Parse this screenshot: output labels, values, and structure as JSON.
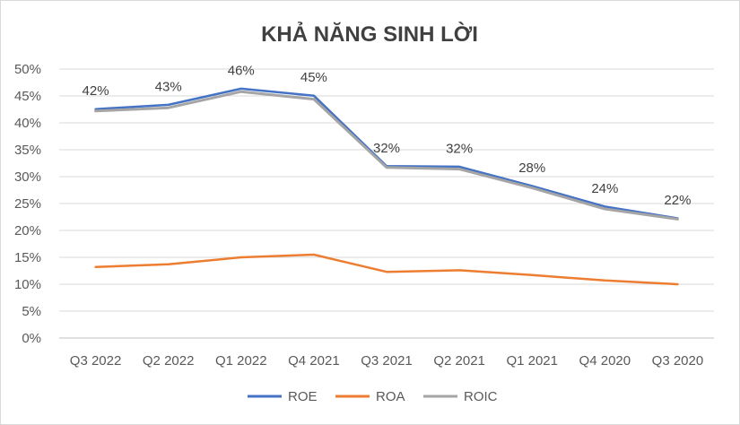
{
  "chart_data": {
    "type": "line",
    "title": "KHẢ NĂNG SINH LỜI",
    "categories": [
      "Q3 2022",
      "Q2 2022",
      "Q1 2022",
      "Q4 2021",
      "Q3 2021",
      "Q2 2021",
      "Q1 2021",
      "Q4 2020",
      "Q3 2020"
    ],
    "y_ticks": [
      "0%",
      "5%",
      "10%",
      "15%",
      "20%",
      "25%",
      "30%",
      "35%",
      "40%",
      "45%",
      "50%"
    ],
    "ylim": [
      0,
      50
    ],
    "series": [
      {
        "name": "ROE",
        "color": "#4472c4",
        "values": [
          42.3,
          43.1,
          46.1,
          44.8,
          31.7,
          31.6,
          28.0,
          24.2,
          22.0
        ]
      },
      {
        "name": "ROA",
        "color": "#ed7d31",
        "values": [
          13.2,
          13.7,
          15.0,
          15.5,
          12.3,
          12.6,
          11.7,
          10.7,
          10.0
        ]
      },
      {
        "name": "ROIC",
        "color": "#a5a5a5",
        "values": [
          42.2,
          42.8,
          45.8,
          44.4,
          31.7,
          31.4,
          27.9,
          24.0,
          22.1
        ]
      }
    ],
    "data_labels": [
      "42%",
      "43%",
      "46%",
      "45%",
      "32%",
      "32%",
      "28%",
      "24%",
      "22%"
    ],
    "grid": true,
    "legend_position": "bottom"
  }
}
